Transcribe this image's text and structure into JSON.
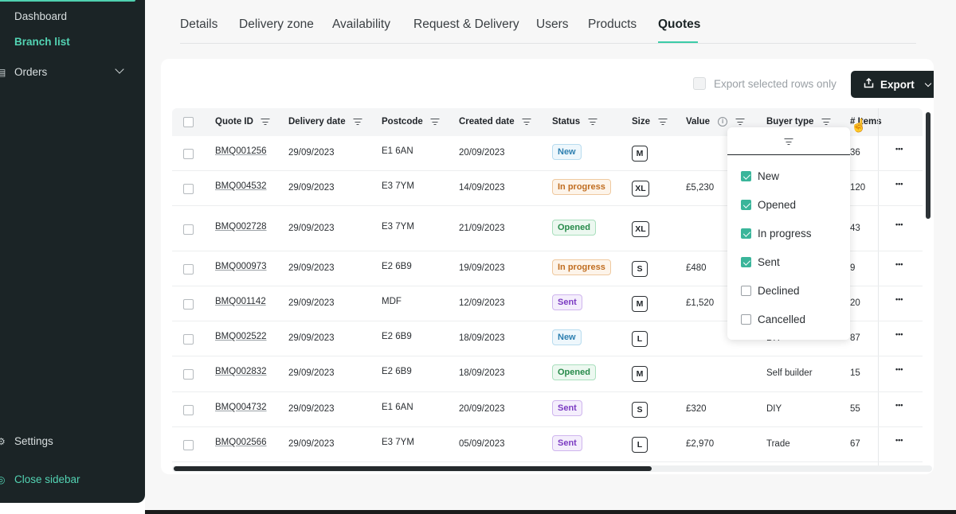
{
  "sidebar": {
    "items": [
      {
        "label": "Dashboard"
      },
      {
        "label": "Branch list"
      },
      {
        "label": "Orders"
      },
      {
        "label": "Settings"
      },
      {
        "label": "Close sidebar"
      }
    ],
    "accent_color": "#53d3b3",
    "background": "#1b2426"
  },
  "tabs": [
    {
      "label": "Details"
    },
    {
      "label": "Delivery zone"
    },
    {
      "label": "Availability"
    },
    {
      "label": "Request & Delivery"
    },
    {
      "label": "Users"
    },
    {
      "label": "Products"
    },
    {
      "label": "Quotes"
    }
  ],
  "active_tab": "Quotes",
  "toolbar": {
    "export_selected_label": "Export selected rows only",
    "export_selected_checked": false,
    "export_button_label": "Export"
  },
  "table": {
    "columns": [
      "Quote ID",
      "Delivery date",
      "Postcode",
      "Created date",
      "Status",
      "Size",
      "Value",
      "Buyer type",
      "# Items"
    ],
    "rows": [
      {
        "quote_id": "BMQ001256",
        "delivery": "29/09/2023",
        "postcode": "E1 6AN",
        "created": "20/09/2023",
        "status": "New",
        "size": "M",
        "value": "",
        "buyer": "",
        "items": "36"
      },
      {
        "quote_id": "BMQ004532",
        "delivery": "29/09/2023",
        "postcode": "E3 7YM",
        "created": "14/09/2023",
        "status": "In progress",
        "size": "XL",
        "value": "£5,230",
        "buyer": "",
        "items": "120"
      },
      {
        "quote_id": "BMQ002728",
        "delivery": "29/09/2023",
        "postcode": "E3 7YM",
        "created": "21/09/2023",
        "status": "Opened",
        "size": "XL",
        "value": "",
        "buyer": "",
        "items": "43"
      },
      {
        "quote_id": "BMQ000973",
        "delivery": "29/09/2023",
        "postcode": "E2 6B9",
        "created": "19/09/2023",
        "status": "In progress",
        "size": "S",
        "value": "£480",
        "buyer": "",
        "items": "9"
      },
      {
        "quote_id": "BMQ001142",
        "delivery": "29/09/2023",
        "postcode": "MDF",
        "created": "12/09/2023",
        "status": "Sent",
        "size": "M",
        "value": "£1,520",
        "buyer": "",
        "items": "20"
      },
      {
        "quote_id": "BMQ002522",
        "delivery": "29/09/2023",
        "postcode": "E2 6B9",
        "created": "18/09/2023",
        "status": "New",
        "size": "L",
        "value": "",
        "buyer": "DIY",
        "items": "87"
      },
      {
        "quote_id": "BMQ002832",
        "delivery": "29/09/2023",
        "postcode": "E2 6B9",
        "created": "18/09/2023",
        "status": "Opened",
        "size": "M",
        "value": "",
        "buyer": "Self builder",
        "items": "15"
      },
      {
        "quote_id": "BMQ004732",
        "delivery": "29/09/2023",
        "postcode": "E1 6AN",
        "created": "20/09/2023",
        "status": "Sent",
        "size": "S",
        "value": "£320",
        "buyer": "DIY",
        "items": "55"
      },
      {
        "quote_id": "BMQ002566",
        "delivery": "29/09/2023",
        "postcode": "E3 7YM",
        "created": "05/09/2023",
        "status": "Sent",
        "size": "L",
        "value": "£2,970",
        "buyer": "Trade",
        "items": "67"
      }
    ],
    "row_actions_label": "•••"
  },
  "status_filter": {
    "options": [
      {
        "label": "New",
        "checked": true
      },
      {
        "label": "Opened",
        "checked": true
      },
      {
        "label": "In progress",
        "checked": true
      },
      {
        "label": "Sent",
        "checked": true
      },
      {
        "label": "Declined",
        "checked": false
      },
      {
        "label": "Cancelled",
        "checked": false
      }
    ]
  }
}
